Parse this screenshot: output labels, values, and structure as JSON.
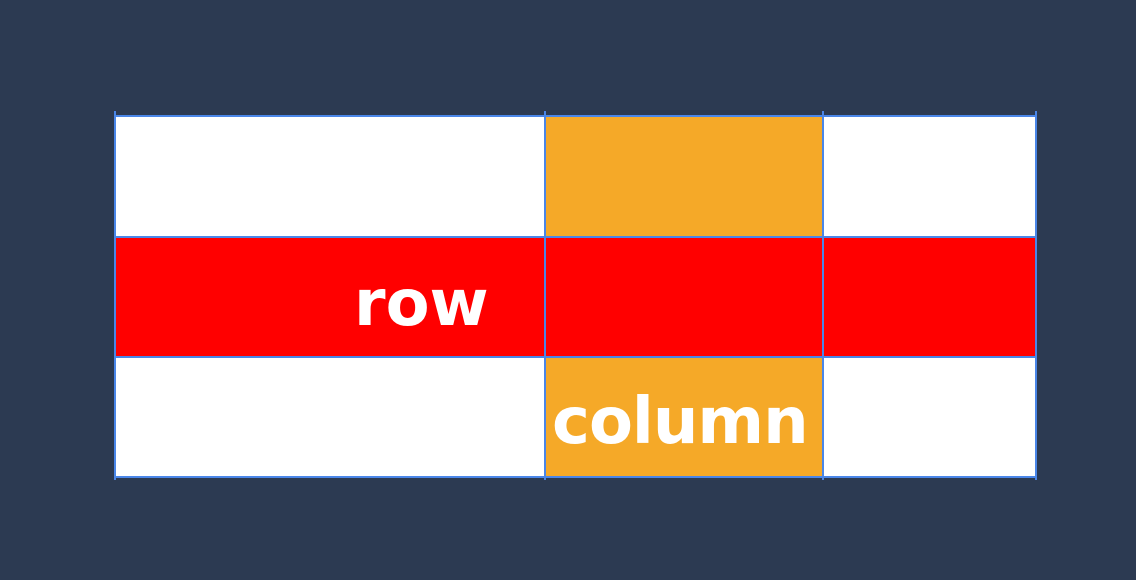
{
  "labels": {
    "row": "row",
    "column": "column"
  },
  "colors": {
    "background": "#2c3a52",
    "cell": "#ffffff",
    "row_highlight": "#ff0000",
    "column_highlight": "#f5a928",
    "grid_line": "#4a86e8",
    "label_text": "#ffffff"
  },
  "grid": {
    "rows": 3,
    "columns": 3,
    "highlighted_row": 2,
    "highlighted_column": 2
  }
}
